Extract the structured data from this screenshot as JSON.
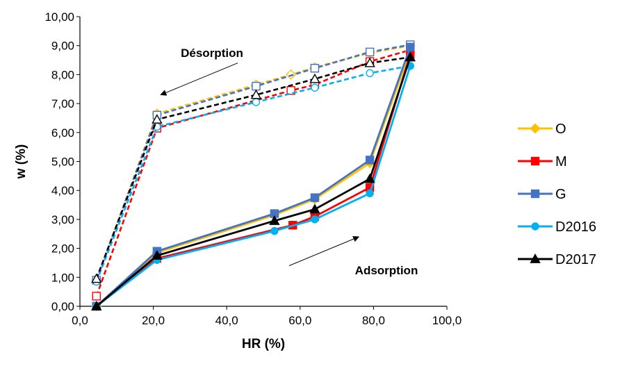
{
  "chart_data": {
    "type": "line",
    "title": "",
    "xlabel": "HR (%)",
    "ylabel": "w (%)",
    "xlim": [
      0,
      100
    ],
    "ylim": [
      0,
      10
    ],
    "x_ticks": [
      "0,0",
      "20,0",
      "40,0",
      "60,0",
      "80,0",
      "100,0"
    ],
    "y_ticks": [
      "0,00",
      "1,00",
      "2,00",
      "3,00",
      "4,00",
      "5,00",
      "6,00",
      "7,00",
      "8,00",
      "9,00",
      "10,00"
    ],
    "grid": false,
    "legend_position": "right",
    "annotations": [
      {
        "text": "Désorption",
        "arrow_from": [
          43,
          8.4
        ],
        "arrow_to": [
          22,
          7.3
        ]
      },
      {
        "text": "Adsorption",
        "arrow_from": [
          57,
          1.4
        ],
        "arrow_to": [
          76,
          2.4
        ]
      }
    ],
    "series": [
      {
        "name": "O",
        "color": "#FFC000",
        "marker": "diamond",
        "adsorption": {
          "x": [
            4.5,
            21,
            53,
            64,
            79,
            90
          ],
          "y": [
            0,
            1.85,
            3.15,
            3.7,
            4.95,
            8.8
          ]
        },
        "desorption": {
          "x": [
            4.5,
            21,
            48,
            57.5,
            64,
            79,
            90
          ],
          "y": [
            0.9,
            6.65,
            7.65,
            8.0,
            8.25,
            8.75,
            9.0
          ]
        }
      },
      {
        "name": "M",
        "color": "#FF0000",
        "marker": "square",
        "adsorption": {
          "x": [
            4.5,
            21,
            58,
            64,
            79,
            90
          ],
          "y": [
            0,
            1.65,
            2.8,
            3.1,
            4.1,
            8.7
          ]
        },
        "desorption": {
          "x": [
            4.5,
            21,
            57.5,
            64,
            79,
            90
          ],
          "y": [
            0.35,
            6.15,
            7.45,
            7.65,
            8.45,
            8.85
          ]
        }
      },
      {
        "name": "G",
        "color": "#4472C4",
        "marker": "square",
        "adsorption": {
          "x": [
            4.5,
            21,
            53,
            64,
            79,
            90
          ],
          "y": [
            0,
            1.9,
            3.2,
            3.75,
            5.05,
            8.95
          ]
        },
        "desorption": {
          "x": [
            4.5,
            21,
            48,
            64,
            79,
            90
          ],
          "y": [
            0.9,
            6.6,
            7.6,
            8.22,
            8.78,
            9.03
          ]
        }
      },
      {
        "name": "D2016",
        "color": "#00B0F0",
        "marker": "circle",
        "adsorption": {
          "x": [
            4.5,
            21,
            53,
            64,
            79,
            90
          ],
          "y": [
            0,
            1.6,
            2.6,
            3.0,
            3.9,
            8.3
          ]
        },
        "desorption": {
          "x": [
            4.5,
            21,
            48,
            64,
            79,
            90
          ],
          "y": [
            0.85,
            6.2,
            7.05,
            7.55,
            8.05,
            8.3
          ]
        }
      },
      {
        "name": "D2017",
        "color": "#000000",
        "marker": "triangle",
        "adsorption": {
          "x": [
            4.5,
            21,
            53,
            64,
            79,
            90
          ],
          "y": [
            0,
            1.75,
            2.95,
            3.35,
            4.4,
            8.6
          ]
        },
        "desorption": {
          "x": [
            4.5,
            21,
            48,
            64,
            79,
            90
          ],
          "y": [
            0.95,
            6.45,
            7.3,
            7.85,
            8.4,
            8.6
          ]
        }
      }
    ]
  }
}
